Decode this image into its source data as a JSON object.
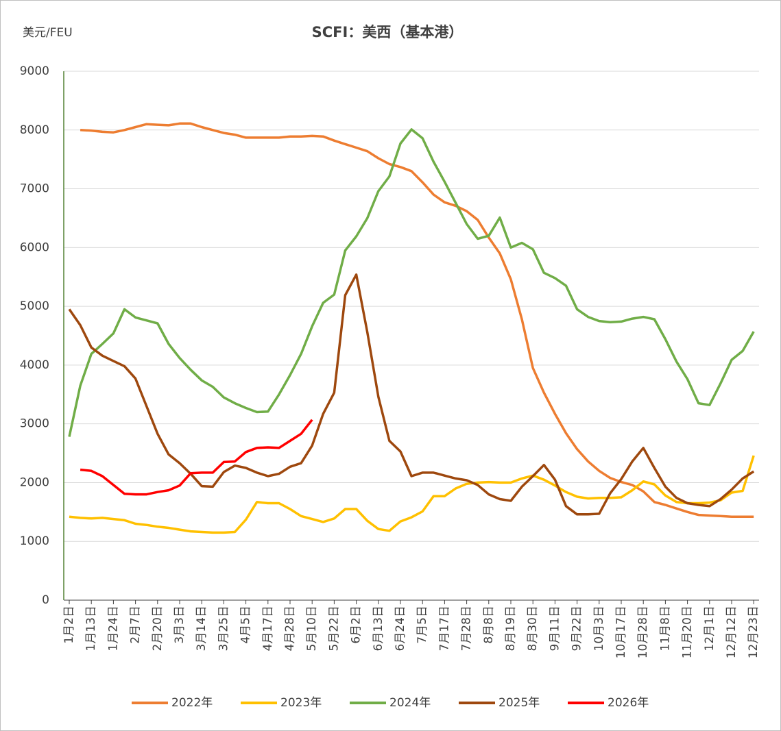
{
  "chart_data": {
    "type": "line",
    "title": "SCFI：美西（基本港）",
    "y_label": "美元/FEU",
    "categories": [
      "1月2日",
      null,
      "1月13日",
      null,
      "1月24日",
      null,
      "2月7日",
      null,
      "2月20日",
      null,
      "3月3日",
      null,
      "3月14日",
      null,
      "3月25日",
      null,
      "4月5日",
      null,
      "4月17日",
      null,
      "4月28日",
      null,
      "5月10日",
      null,
      "5月22日",
      null,
      "6月2日",
      null,
      "6月13日",
      null,
      "6月24日",
      null,
      "7月5日",
      null,
      "7月17日",
      null,
      "7月28日",
      null,
      "8月8日",
      null,
      "8月19日",
      null,
      "8月30日",
      null,
      "9月11日",
      null,
      "9月22日",
      null,
      "10月3日",
      null,
      "10月17日",
      null,
      "10月28日",
      null,
      "11月8日",
      null,
      "11月20日",
      null,
      "12月1日",
      null,
      "12月12日",
      null,
      "12月23日"
    ],
    "ylim": [
      0,
      9000
    ],
    "yticks": [
      0,
      1000,
      2000,
      3000,
      4000,
      5000,
      6000,
      7000,
      8000,
      9000
    ],
    "grid": true,
    "legend": "bottom",
    "series": [
      {
        "name": "2022年",
        "color": "#ED7D31",
        "values": [
          null,
          8000,
          7990,
          7970,
          7960,
          8000,
          8050,
          8100,
          8090,
          8080,
          8110,
          8110,
          8050,
          8000,
          7950,
          7920,
          7870,
          7870,
          7870,
          7870,
          7890,
          7890,
          7900,
          7890,
          7820,
          7760,
          7700,
          7640,
          7520,
          7420,
          7370,
          7300,
          7110,
          6900,
          6770,
          6710,
          6620,
          6470,
          6170,
          5900,
          5460,
          4780,
          3950,
          3530,
          3170,
          2840,
          2570,
          2360,
          2200,
          2080,
          2010,
          1960,
          1850,
          1670,
          1620,
          1560,
          1500,
          1450,
          1440,
          1430,
          1420,
          1420,
          1420
        ]
      },
      {
        "name": "2023年",
        "color": "#FFC000",
        "values": [
          1420,
          1400,
          1390,
          1400,
          1380,
          1360,
          1300,
          1280,
          1250,
          1230,
          1200,
          1170,
          1160,
          1150,
          1150,
          1160,
          1370,
          1670,
          1650,
          1650,
          1550,
          1430,
          1380,
          1330,
          1390,
          1550,
          1550,
          1350,
          1210,
          1180,
          1340,
          1410,
          1510,
          1770,
          1770,
          1900,
          1980,
          2000,
          2010,
          2000,
          2000,
          2070,
          2120,
          2050,
          1950,
          1840,
          1760,
          1730,
          1740,
          1740,
          1750,
          1870,
          2020,
          1970,
          1780,
          1670,
          1650,
          1650,
          1660,
          1700,
          1830,
          1860,
          2460
        ]
      },
      {
        "name": "2024年",
        "color": "#70AD47",
        "values": [
          2780,
          3650,
          4190,
          4360,
          4540,
          4950,
          4810,
          4760,
          4710,
          4360,
          4120,
          3920,
          3740,
          3630,
          3450,
          3350,
          3270,
          3200,
          3210,
          3500,
          3830,
          4190,
          4660,
          5060,
          5200,
          5950,
          6190,
          6500,
          6960,
          7210,
          7770,
          8010,
          7860,
          7460,
          7120,
          6760,
          6400,
          6150,
          6200,
          6510,
          6000,
          6080,
          5970,
          5570,
          5480,
          5350,
          4950,
          4820,
          4750,
          4730,
          4740,
          4790,
          4820,
          4780,
          4440,
          4060,
          3760,
          3350,
          3320,
          3690,
          4090,
          4240,
          4570
        ]
      },
      {
        "name": "2025年",
        "color": "#9E480E",
        "values": [
          4950,
          4680,
          4300,
          4160,
          4070,
          3980,
          3770,
          3300,
          2830,
          2480,
          2330,
          2150,
          1940,
          1930,
          2180,
          2290,
          2250,
          2170,
          2110,
          2150,
          2270,
          2330,
          2630,
          3170,
          3530,
          5190,
          5540,
          4560,
          3460,
          2710,
          2530,
          2110,
          2170,
          2170,
          2120,
          2070,
          2040,
          1960,
          1800,
          1720,
          1690,
          1930,
          2110,
          2300,
          2050,
          1600,
          1460,
          1460,
          1470,
          1820,
          2060,
          2360,
          2590,
          2250,
          1930,
          1740,
          1650,
          1620,
          1600,
          1720,
          1880,
          2070,
          2190
        ]
      },
      {
        "name": "2026年",
        "color": "#FF0000",
        "values": [
          null,
          2220,
          2200,
          2110,
          1960,
          1810,
          1800,
          1800,
          1840,
          1870,
          1950,
          2160,
          2170,
          2170,
          2350,
          2360,
          2520,
          2590,
          2600,
          2590,
          2710,
          2830,
          3070,
          null,
          null,
          null,
          null,
          null,
          null,
          null,
          null,
          null,
          null,
          null,
          null,
          null,
          null,
          null,
          null,
          null,
          null,
          null,
          null,
          null,
          null,
          null,
          null,
          null,
          null,
          null,
          null,
          null,
          null,
          null,
          null,
          null,
          null,
          null,
          null,
          null,
          null,
          null,
          null
        ]
      }
    ]
  }
}
